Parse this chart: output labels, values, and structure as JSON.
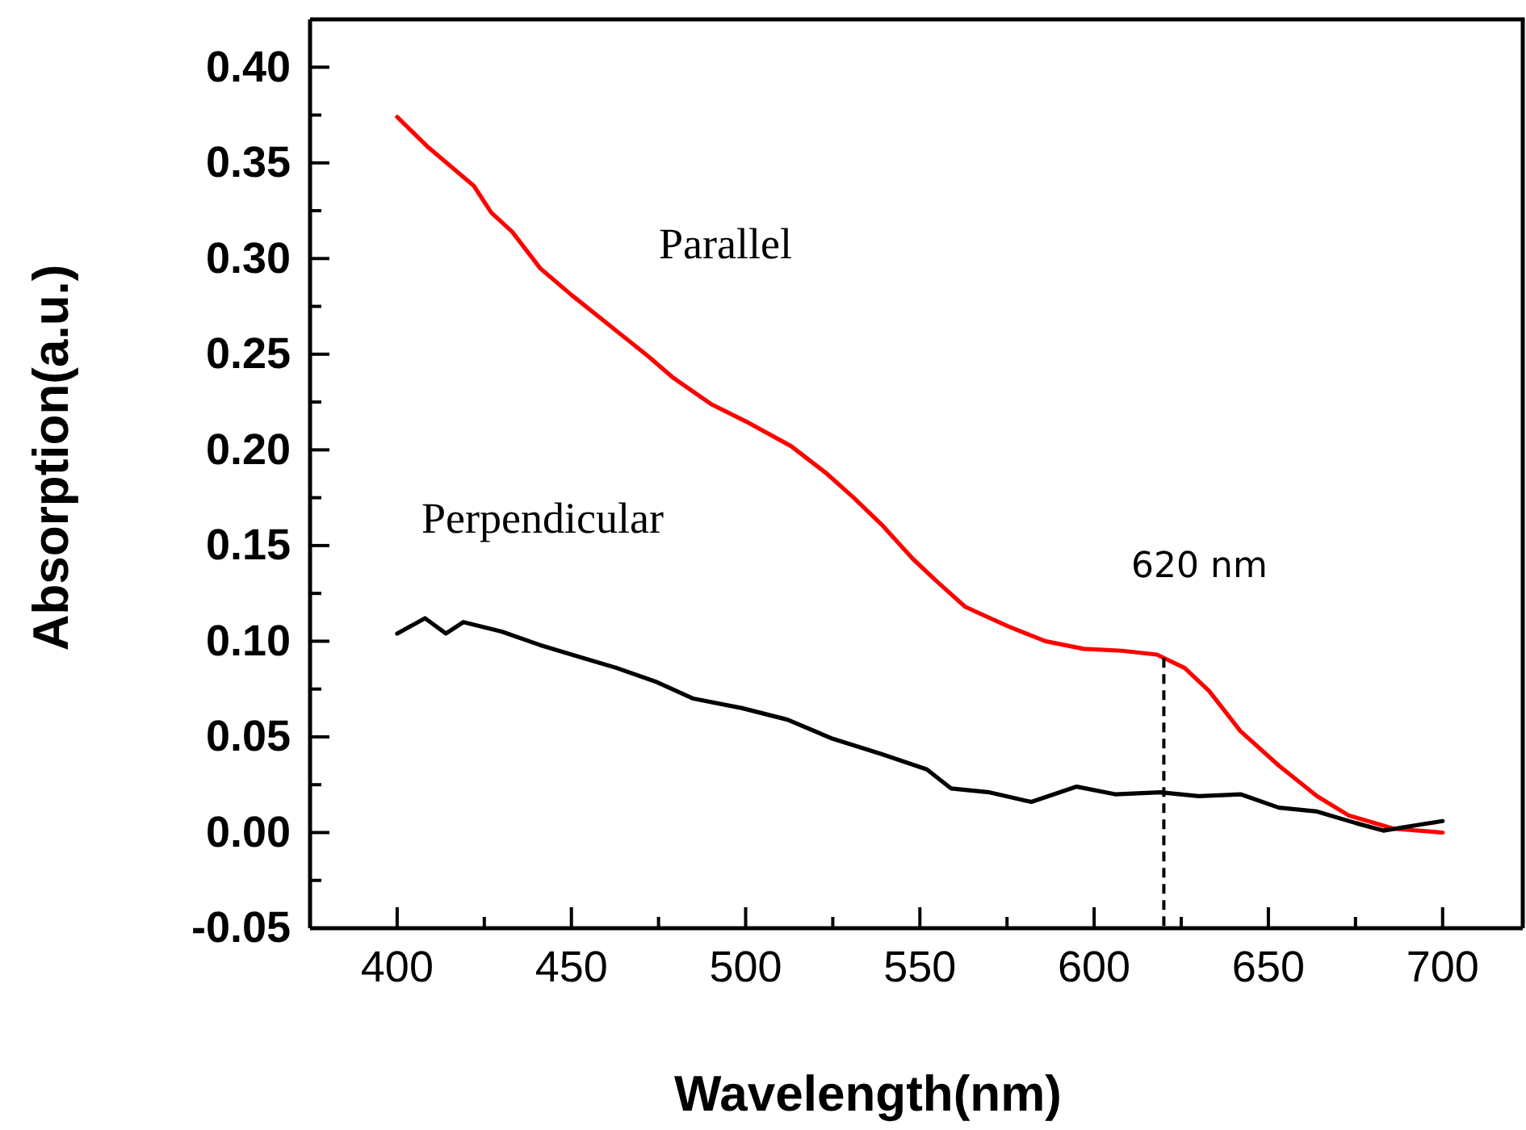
{
  "chart_data": {
    "type": "line",
    "xlabel": "Wavelength(nm)",
    "ylabel": "Absorption(a.u.)",
    "xlim": [
      375,
      723
    ],
    "ylim": [
      -0.05,
      0.425
    ],
    "xticks": [
      400,
      {
        "value": 425,
        "label": null
      },
      450,
      {
        "value": 475,
        "label": null
      },
      500,
      {
        "value": 525,
        "label": null
      },
      550,
      {
        "value": 575,
        "label": null
      },
      600,
      {
        "value": 625,
        "label": null
      },
      650,
      {
        "value": 675,
        "label": null
      },
      700
    ],
    "yticks": [
      {
        "value": -0.05,
        "label": "-0.05"
      },
      {
        "value": -0.025,
        "label": null
      },
      {
        "value": 0,
        "label": "0.00"
      },
      {
        "value": 0.025,
        "label": null
      },
      {
        "value": 0.05,
        "label": "0.05"
      },
      {
        "value": 0.075,
        "label": null
      },
      {
        "value": 0.1,
        "label": "0.10"
      },
      {
        "value": 0.125,
        "label": null
      },
      {
        "value": 0.15,
        "label": "0.15"
      },
      {
        "value": 0.175,
        "label": null
      },
      {
        "value": 0.2,
        "label": "0.20"
      },
      {
        "value": 0.225,
        "label": null
      },
      {
        "value": 0.25,
        "label": "0.25"
      },
      {
        "value": 0.275,
        "label": null
      },
      {
        "value": 0.3,
        "label": "0.30"
      },
      {
        "value": 0.325,
        "label": null
      },
      {
        "value": 0.35,
        "label": "0.35"
      },
      {
        "value": 0.375,
        "label": null
      },
      {
        "value": 0.4,
        "label": "0.40"
      }
    ],
    "grid": false,
    "legend": false,
    "marker": "none",
    "line_style": "solid",
    "series": [
      {
        "name": "Parallel",
        "color": "#ff0000",
        "x": [
          400,
          409,
          422,
          427,
          433,
          441,
          450,
          461,
          472,
          479,
          490,
          501,
          513,
          523,
          531,
          539,
          548,
          555,
          563,
          575,
          586,
          597,
          608,
          618,
          626,
          633,
          642,
          653,
          664,
          673,
          686,
          700
        ],
        "values": [
          0.374,
          0.358,
          0.338,
          0.324,
          0.314,
          0.295,
          0.281,
          0.265,
          0.249,
          0.238,
          0.224,
          0.214,
          0.202,
          0.188,
          0.175,
          0.161,
          0.143,
          0.131,
          0.118,
          0.108,
          0.1,
          0.096,
          0.095,
          0.093,
          0.086,
          0.074,
          0.053,
          0.035,
          0.019,
          0.009,
          0.002,
          0.0
        ]
      },
      {
        "name": "Perpendicular",
        "color": "#000000",
        "x": [
          400,
          408,
          414,
          419,
          430,
          441,
          452,
          463,
          474,
          485,
          499,
          512,
          525,
          539,
          552,
          559,
          570,
          582,
          595,
          606,
          619,
          630,
          642,
          653,
          664,
          675,
          683,
          693,
          700
        ],
        "values": [
          0.104,
          0.112,
          0.104,
          0.11,
          0.105,
          0.098,
          0.092,
          0.086,
          0.079,
          0.07,
          0.065,
          0.059,
          0.049,
          0.041,
          0.033,
          0.023,
          0.021,
          0.016,
          0.024,
          0.02,
          0.021,
          0.019,
          0.02,
          0.013,
          0.011,
          0.005,
          0.001,
          0.004,
          0.006
        ]
      }
    ],
    "ref_lines": [
      {
        "axis": "x",
        "value": 620,
        "label": "620 nm",
        "color": "#000000",
        "line_style": "dashed"
      }
    ]
  }
}
